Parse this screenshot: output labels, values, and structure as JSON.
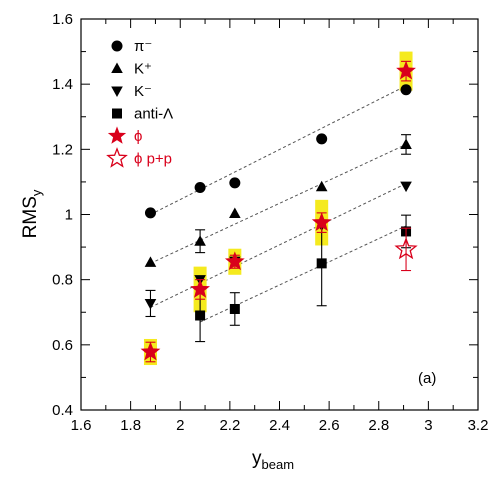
{
  "colors": {
    "phi": "#d9001b",
    "band": "#f5ea1e",
    "axis": "#000000",
    "guide": "#555555"
  },
  "chart_data": {
    "type": "scatter",
    "xlabel": "y",
    "xlabel_sub": "beam",
    "ylabel": "RMS",
    "ylabel_sub": "y",
    "xlim": [
      1.6,
      3.2
    ],
    "ylim": [
      0.4,
      1.6
    ],
    "xticks": [
      1.6,
      1.8,
      2,
      2.2,
      2.4,
      2.6,
      2.8,
      3,
      3.2
    ],
    "xtick_labels": [
      "1.6",
      "1.8",
      "2",
      "2.2",
      "2.4",
      "2.6",
      "2.8",
      "3",
      "3.2"
    ],
    "yticks": [
      0.4,
      0.6,
      0.8,
      1.0,
      1.2,
      1.4,
      1.6
    ],
    "ytick_labels": [
      "0.4",
      "0.6",
      "0.8",
      "1",
      "1.2",
      "1.4",
      "1.6"
    ],
    "grid": false,
    "legend_position": "top-left",
    "panel_label": "(a)",
    "series": [
      {
        "name": "π⁻",
        "marker": "circle",
        "points": [
          {
            "x": 1.88,
            "y": 1.005
          },
          {
            "x": 2.08,
            "y": 1.083
          },
          {
            "x": 2.22,
            "y": 1.097
          },
          {
            "x": 2.57,
            "y": 1.232
          },
          {
            "x": 2.91,
            "y": 1.383
          }
        ]
      },
      {
        "name": "K⁺",
        "marker": "triangle-up",
        "points": [
          {
            "x": 1.88,
            "y": 0.853
          },
          {
            "x": 2.08,
            "y": 0.918,
            "err": 0.035
          },
          {
            "x": 2.22,
            "y": 1.003
          },
          {
            "x": 2.57,
            "y": 1.085
          },
          {
            "x": 2.91,
            "y": 1.215,
            "err": 0.03
          }
        ]
      },
      {
        "name": "K⁻",
        "marker": "triangle-down",
        "points": [
          {
            "x": 1.88,
            "y": 0.727,
            "err": 0.04
          },
          {
            "x": 2.08,
            "y": 0.8
          },
          {
            "x": 2.22,
            "y": 0.857
          },
          {
            "x": 2.57,
            "y": 0.967
          },
          {
            "x": 2.91,
            "y": 1.087
          }
        ]
      },
      {
        "name": "anti-Λ",
        "marker": "square",
        "points": [
          {
            "x": 2.08,
            "y": 0.69,
            "err": 0.08
          },
          {
            "x": 2.22,
            "y": 0.71,
            "err": 0.05
          },
          {
            "x": 2.57,
            "y": 0.85,
            "err": 0.13
          },
          {
            "x": 2.91,
            "y": 0.948,
            "err": 0.05
          }
        ]
      },
      {
        "name": "ϕ",
        "marker": "star-filled",
        "points": [
          {
            "x": 1.88,
            "y": 0.578,
            "err": 0.03,
            "sys": 0.04
          },
          {
            "x": 2.08,
            "y": 0.77,
            "err": 0.03,
            "sys": 0.07
          },
          {
            "x": 2.22,
            "y": 0.855,
            "err": 0.02,
            "sys": 0.04
          },
          {
            "x": 2.57,
            "y": 0.975,
            "err": 0.03,
            "sys": 0.07
          },
          {
            "x": 2.91,
            "y": 1.44,
            "err": 0.03,
            "sys": 0.06
          }
        ]
      },
      {
        "name": "ϕ p+p",
        "marker": "star-open",
        "points": [
          {
            "x": 2.91,
            "y": 0.893,
            "err": 0.065
          }
        ]
      }
    ],
    "fit_lines": [
      {
        "x": [
          1.88,
          2.91
        ],
        "y": [
          1.0,
          1.395
        ]
      },
      {
        "x": [
          1.88,
          2.91
        ],
        "y": [
          0.85,
          1.215
        ]
      },
      {
        "x": [
          1.88,
          2.91
        ],
        "y": [
          0.715,
          1.095
        ]
      },
      {
        "x": [
          2.08,
          2.91
        ],
        "y": [
          0.67,
          0.965
        ]
      }
    ]
  }
}
